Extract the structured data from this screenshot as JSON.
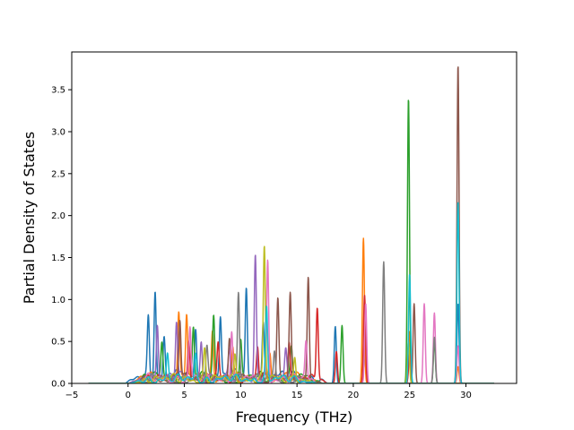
{
  "chart_data": {
    "type": "line",
    "title": "",
    "xlabel": "Frequency (THz)",
    "ylabel": "Partial Density of States",
    "xlim": [
      -5.0,
      34.5
    ],
    "ylim": [
      0.0,
      3.95
    ],
    "x_ticks": [
      -5,
      0,
      5,
      10,
      15,
      20,
      25,
      30
    ],
    "x_tick_labels": [
      "−5",
      "0",
      "5",
      "10",
      "15",
      "20",
      "25",
      "30"
    ],
    "y_ticks": [
      0.0,
      0.5,
      1.0,
      1.5,
      2.0,
      2.5,
      3.0,
      3.5
    ],
    "y_tick_labels": [
      "0.0",
      "0.5",
      "1.0",
      "1.5",
      "2.0",
      "2.5",
      "3.0",
      "3.5"
    ],
    "grid": false,
    "legend": "none",
    "x_domain": [
      -3.5,
      32.5
    ],
    "series": [
      {
        "color": "#1f77b4",
        "base": {
          "start": 0.5,
          "end": 17.0,
          "amp": 0.14
        },
        "peaks": [
          [
            1.8,
            0.7
          ],
          [
            2.4,
            1.07
          ],
          [
            3.2,
            0.5
          ],
          [
            6.0,
            0.55
          ],
          [
            8.2,
            0.72
          ],
          [
            10.5,
            1.05
          ],
          [
            12.0,
            0.62
          ],
          [
            18.4,
            0.68
          ],
          [
            21.0,
            0.35
          ],
          [
            25.0,
            0.55
          ],
          [
            29.3,
            0.95
          ]
        ]
      },
      {
        "color": "#ff7f0e",
        "base": {
          "start": 0.8,
          "end": 16.5,
          "amp": 0.12
        },
        "peaks": [
          [
            4.5,
            0.76
          ],
          [
            5.2,
            0.77
          ],
          [
            7.5,
            0.58
          ],
          [
            9.3,
            0.42
          ],
          [
            12.6,
            0.3
          ],
          [
            20.9,
            1.73
          ],
          [
            25.0,
            0.62
          ],
          [
            29.3,
            0.2
          ]
        ]
      },
      {
        "color": "#2ca02c",
        "base": {
          "start": 0.8,
          "end": 16.5,
          "amp": 0.12
        },
        "peaks": [
          [
            3.0,
            0.42
          ],
          [
            5.8,
            0.6
          ],
          [
            7.6,
            0.7
          ],
          [
            10.0,
            0.45
          ],
          [
            14.5,
            0.35
          ],
          [
            19.0,
            0.69
          ],
          [
            24.9,
            3.4
          ],
          [
            27.2,
            0.5
          ]
        ]
      },
      {
        "color": "#d62728",
        "base": {
          "start": 0.8,
          "end": 17.0,
          "amp": 0.11
        },
        "peaks": [
          [
            5.4,
            0.45
          ],
          [
            8.0,
            0.4
          ],
          [
            11.5,
            0.4
          ],
          [
            14.3,
            0.48
          ],
          [
            16.8,
            0.88
          ],
          [
            18.5,
            0.38
          ],
          [
            21.0,
            1.05
          ],
          [
            25.0,
            0.35
          ]
        ]
      },
      {
        "color": "#9467bd",
        "base": {
          "start": 0.8,
          "end": 16.0,
          "amp": 0.12
        },
        "peaks": [
          [
            2.6,
            0.68
          ],
          [
            4.3,
            0.68
          ],
          [
            6.5,
            0.45
          ],
          [
            9.0,
            0.3
          ],
          [
            11.3,
            1.47
          ],
          [
            14.0,
            0.3
          ]
        ]
      },
      {
        "color": "#8c564b",
        "base": {
          "start": 1.0,
          "end": 16.5,
          "amp": 0.11
        },
        "peaks": [
          [
            4.6,
            0.72
          ],
          [
            9.0,
            0.45
          ],
          [
            13.3,
            0.95
          ],
          [
            14.4,
            0.95
          ],
          [
            16.0,
            1.22
          ],
          [
            25.4,
            0.95
          ],
          [
            29.3,
            3.8
          ]
        ]
      },
      {
        "color": "#e377c2",
        "base": {
          "start": 1.0,
          "end": 16.5,
          "amp": 0.1
        },
        "peaks": [
          [
            5.5,
            0.6
          ],
          [
            9.2,
            0.6
          ],
          [
            12.4,
            1.43
          ],
          [
            15.8,
            0.45
          ],
          [
            21.1,
            0.95
          ],
          [
            26.3,
            0.95
          ],
          [
            27.2,
            0.84
          ],
          [
            29.3,
            0.45
          ]
        ]
      },
      {
        "color": "#7f7f7f",
        "base": {
          "start": 1.0,
          "end": 16.0,
          "amp": 0.1
        },
        "peaks": [
          [
            7.0,
            0.4
          ],
          [
            9.8,
            1.02
          ],
          [
            13.0,
            0.35
          ],
          [
            22.7,
            1.45
          ],
          [
            27.2,
            0.55
          ]
        ]
      },
      {
        "color": "#bcbd22",
        "base": {
          "start": 1.0,
          "end": 16.0,
          "amp": 0.1
        },
        "peaks": [
          [
            6.8,
            0.35
          ],
          [
            9.5,
            0.3
          ],
          [
            12.1,
            1.57
          ],
          [
            14.8,
            0.3
          ],
          [
            24.9,
            0.5
          ]
        ]
      },
      {
        "color": "#17becf",
        "base": {
          "start": 1.0,
          "end": 16.0,
          "amp": 0.09
        },
        "peaks": [
          [
            3.5,
            0.3
          ],
          [
            6.0,
            0.3
          ],
          [
            12.3,
            0.85
          ],
          [
            25.0,
            1.3
          ],
          [
            29.3,
            2.17
          ]
        ]
      }
    ]
  }
}
